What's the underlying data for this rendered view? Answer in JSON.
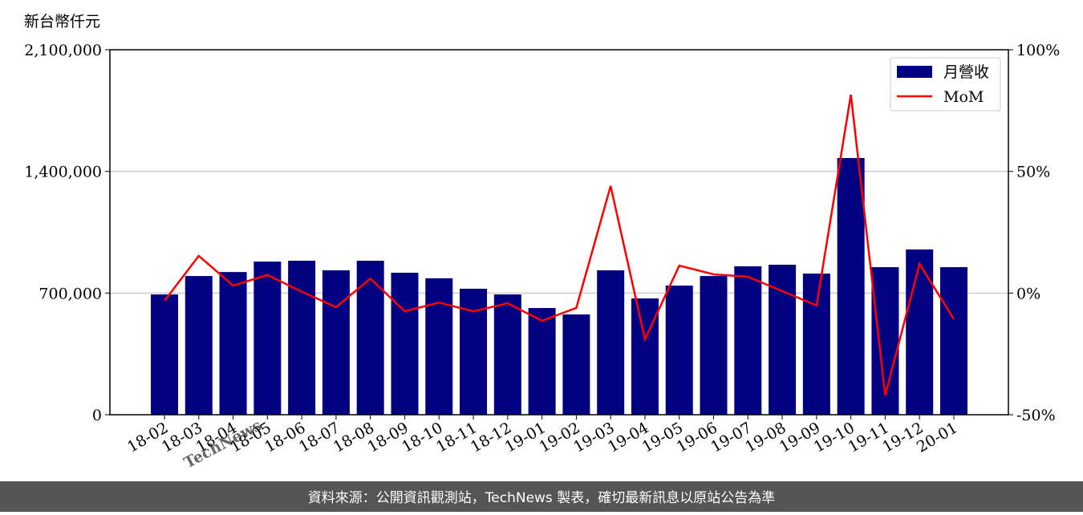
{
  "chart_data": {
    "type": "bar_line",
    "y_label": "新台幣仟元",
    "watermark": "TechNews",
    "source": "資料來源：公開資訊觀測站，TechNews 製表，確切最新訊息以原站公告為準",
    "categories": [
      "18-02",
      "18-03",
      "18-04",
      "18-05",
      "18-06",
      "18-07",
      "18-08",
      "18-09",
      "18-10",
      "18-11",
      "18-12",
      "19-01",
      "19-02",
      "19-03",
      "19-04",
      "19-05",
      "19-06",
      "19-07",
      "19-08",
      "19-09",
      "19-10",
      "19-11",
      "19-12",
      "20-01"
    ],
    "series": [
      {
        "name": "月營收",
        "color": "#000080",
        "type": "bar",
        "values": [
          692000,
          798000,
          821000,
          881000,
          886000,
          831000,
          886000,
          817000,
          785000,
          725000,
          692000,
          614000,
          577000,
          831000,
          669000,
          743000,
          798000,
          854000,
          863000,
          812000,
          1477000,
          849000,
          951000,
          849000
        ]
      },
      {
        "name": "MoM",
        "color": "#ff0000",
        "type": "line",
        "axis": "y2",
        "values": [
          -3.2,
          15.3,
          3.1,
          7.4,
          0.6,
          -5.8,
          6.0,
          -7.5,
          -3.9,
          -7.5,
          -4.2,
          -11.4,
          -6.1,
          44,
          -19,
          11.3,
          7.7,
          6.7,
          0.8,
          -5.1,
          81.5,
          -42,
          12,
          -10.7
        ]
      }
    ],
    "ylim": [
      0,
      2100000
    ],
    "yticks": [
      0,
      {
        "value": 700000,
        "label": "700,000"
      },
      {
        "value": 1400000,
        "label": "1,400,000"
      },
      {
        "value": 2100000,
        "label": "2,100,000"
      }
    ],
    "y2lim": [
      -50,
      100
    ],
    "y2ticks": [
      {
        "value": -50,
        "label": "-50%"
      },
      {
        "value": 0,
        "label": "0%"
      },
      {
        "value": 50,
        "label": "50%"
      },
      {
        "value": 100,
        "label": "100%"
      }
    ],
    "grid": true,
    "legend": "upper-right"
  }
}
